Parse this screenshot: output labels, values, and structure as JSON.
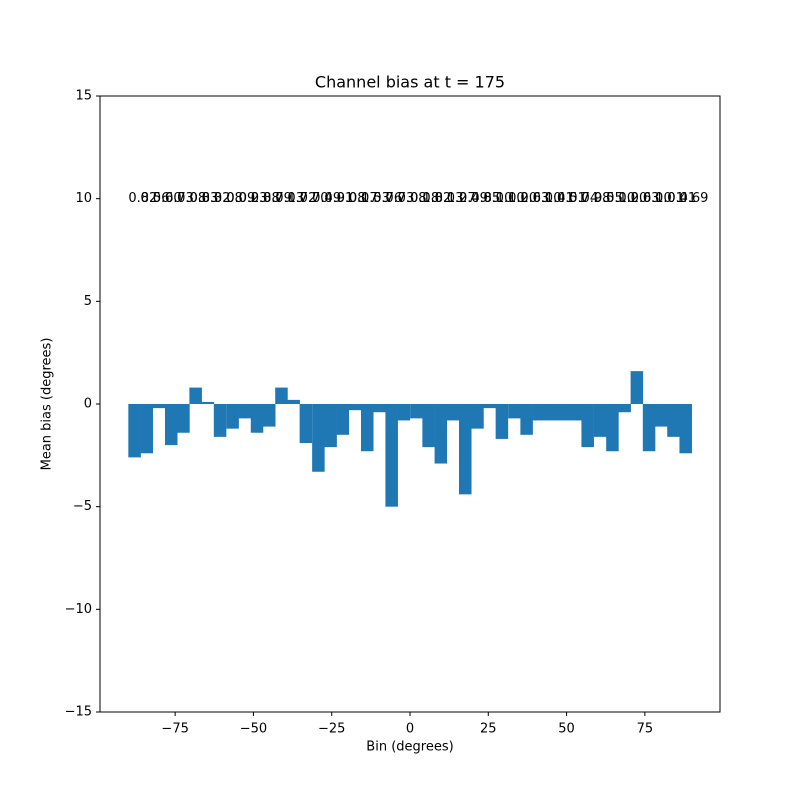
{
  "chart_data": {
    "type": "bar",
    "title": "Channel bias at t = 175",
    "xlabel": "Bin (degrees)",
    "ylabel": "Mean bias (degrees)",
    "x": [
      -88.0,
      -84.1,
      -80.2,
      -76.3,
      -72.4,
      -68.5,
      -64.6,
      -60.7,
      -56.7,
      -52.8,
      -48.9,
      -45.0,
      -41.1,
      -37.2,
      -33.3,
      -29.3,
      -25.4,
      -21.5,
      -17.6,
      -13.7,
      -9.8,
      -5.9,
      -2.0,
      2.0,
      5.9,
      9.8,
      13.7,
      17.6,
      21.5,
      25.4,
      29.3,
      33.3,
      37.2,
      41.1,
      45.0,
      48.9,
      52.8,
      56.7,
      60.7,
      64.6,
      68.5,
      72.4,
      76.3,
      80.2,
      84.1,
      88.0
    ],
    "values": [
      -2.6,
      -2.4,
      -0.2,
      -2.0,
      -1.4,
      0.8,
      0.1,
      -1.6,
      -1.2,
      -0.7,
      -1.4,
      -1.1,
      0.8,
      0.2,
      -1.9,
      -3.3,
      -2.1,
      -1.5,
      -0.3,
      -2.3,
      -0.4,
      -5.0,
      -0.8,
      -0.7,
      -2.1,
      -2.9,
      -0.8,
      -4.4,
      -1.2,
      -0.2,
      -1.7,
      -0.7,
      -1.5,
      -0.8,
      -0.8,
      -0.8,
      -0.8,
      -2.1,
      -1.6,
      -2.3,
      -0.4,
      1.6,
      -2.3,
      -1.1,
      -1.6,
      -2.4
    ],
    "annotations": [
      "0.82",
      "0.56",
      "0.60",
      "0.73",
      "0.08",
      "0.83",
      "0.32",
      "0.08",
      "0.09",
      "0.23",
      "0.88",
      "0.79",
      "0.13",
      "0.72",
      "0.70",
      "0.49",
      "0.91",
      "0.08",
      "0.17",
      "0.53",
      "0.76",
      "0.73",
      "0.08",
      "0.18",
      "0.82",
      "0.13",
      "0.27",
      "0.49",
      "0.85",
      "0.10",
      "0.10",
      "0.20",
      "0.63",
      "0.10",
      "0.41",
      "0.51",
      "0.74",
      "0.98",
      "0.55",
      "0.10",
      "0.20",
      "0.63",
      "0.10",
      "0.01",
      "0.41",
      "0.69"
    ],
    "annotation_y": 10,
    "color": "#1f77b4",
    "xlim": [
      -99,
      99
    ],
    "ylim": [
      -15,
      15
    ],
    "xticks": [
      {
        "value": -75,
        "label": "−75"
      },
      {
        "value": -50,
        "label": "−50"
      },
      {
        "value": -25,
        "label": "−25"
      },
      0,
      25,
      50,
      75
    ],
    "yticks": [
      {
        "value": -15,
        "label": "−15"
      },
      {
        "value": -10,
        "label": "−10"
      },
      {
        "value": -5,
        "label": "−5"
      },
      0,
      5,
      10,
      15
    ]
  }
}
